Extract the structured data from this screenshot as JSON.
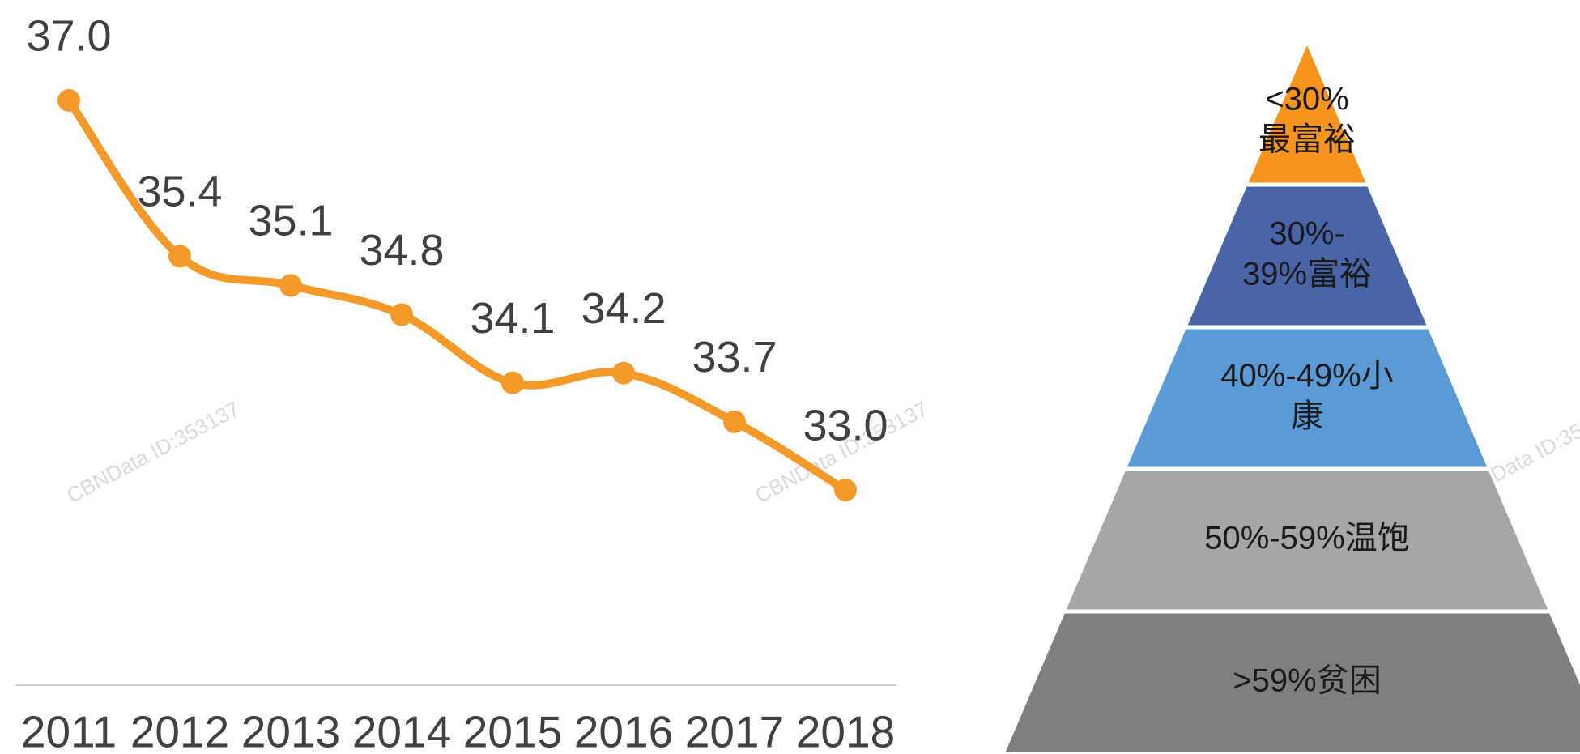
{
  "chart_data": [
    {
      "type": "line",
      "categories": [
        "2011",
        "2012",
        "2013",
        "2014",
        "2015",
        "2016",
        "2017",
        "2018"
      ],
      "values": [
        37.0,
        35.4,
        35.1,
        34.8,
        34.1,
        34.2,
        33.7,
        33.0
      ],
      "value_labels": [
        "37.0",
        "35.4",
        "35.1",
        "34.8",
        "34.1",
        "34.2",
        "33.7",
        "33.0"
      ],
      "color": "#f39a2b",
      "watermark": "CBNData ID:353137"
    },
    {
      "type": "pyramid",
      "categories": [
        [
          "<30%",
          "最富裕"
        ],
        [
          "30%-",
          "39%富裕"
        ],
        [
          "40%-49%小",
          "康"
        ],
        [
          "50%-59%温饱"
        ],
        [
          ">59%贫困"
        ]
      ],
      "colors": [
        "#f7941d",
        "#4a64a8",
        "#5b9bd5",
        "#a6a6a6",
        "#7f7f7f"
      ]
    }
  ]
}
